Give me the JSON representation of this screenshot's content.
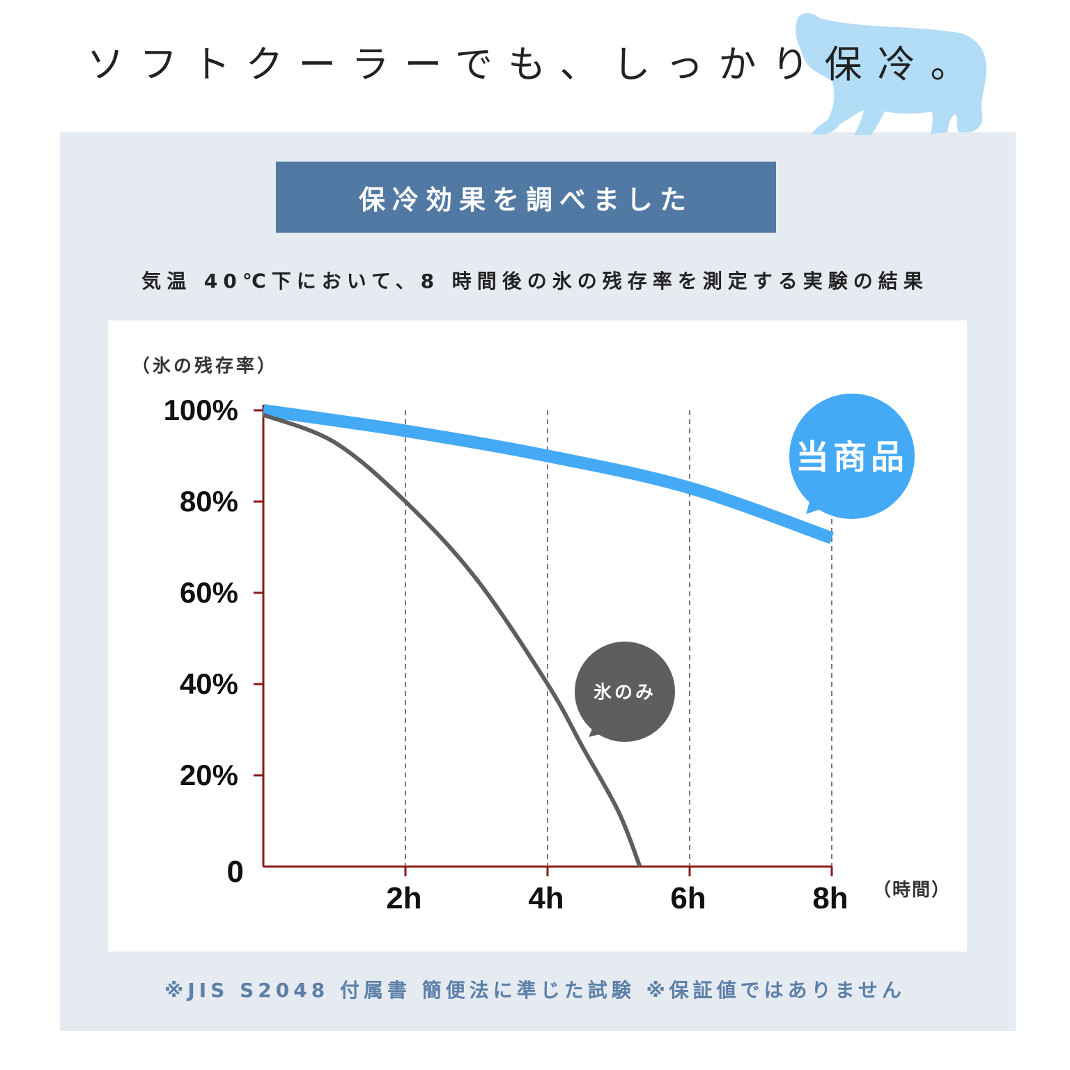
{
  "headline": "ソフトクーラーでも、しっかり保冷。",
  "banner": "保冷効果を調べました",
  "subtitle": "気温 40℃下において、8 時間後の氷の残存率を測定する実験の結果",
  "footnote": "※JIS S2048 付属書 簡便法に準じた試験 ※保証値ではありません",
  "colors": {
    "panel_bg": "#e6eaf1",
    "banner_bg": "#5279a3",
    "product_line": "#44aaf5",
    "ice_line": "#5e5e5e",
    "axis": "#8b1a1a",
    "bear": "#b3dcf7",
    "footnote": "#5c80a8"
  },
  "chart_data": {
    "type": "line",
    "ylabel": "（氷の残存率）",
    "xlabel": "（時間）",
    "y_ticks": [
      "100%",
      "80%",
      "60%",
      "40%",
      "20%",
      "0"
    ],
    "x_ticks": [
      "2h",
      "4h",
      "6h",
      "8h"
    ],
    "xlim": [
      0,
      8
    ],
    "ylim": [
      0,
      100
    ],
    "grid": "vertical dashed at 2h, 4h, 6h, 8h",
    "series": [
      {
        "name": "当商品",
        "x": [
          0,
          2,
          4,
          6,
          8
        ],
        "y": [
          100,
          95.5,
          90,
          83,
          72
        ]
      },
      {
        "name": "氷のみ",
        "x": [
          0,
          1,
          2,
          3,
          4,
          4.5,
          5,
          5.3
        ],
        "y": [
          99,
          93,
          80,
          63,
          40,
          26,
          12,
          0
        ]
      }
    ]
  }
}
